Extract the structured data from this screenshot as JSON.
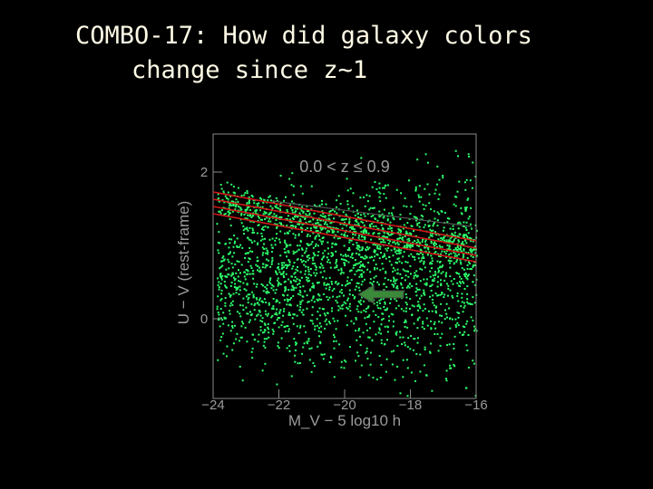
{
  "slide": {
    "title_line1": "COMBO-17: How did galaxy colors",
    "title_line2": "change since z~1",
    "figure": {
      "panel_label": "0.0 < z ≤ 0.9",
      "x_axis_label": "M_V − 5 log10 h",
      "y_axis_label": "U − V (rest-frame)",
      "x_tick_labels": [
        "−24",
        "−22",
        "−20",
        "−18",
        "−16"
      ],
      "y_tick_labels": [
        "2",
        "0"
      ]
    }
  }
}
